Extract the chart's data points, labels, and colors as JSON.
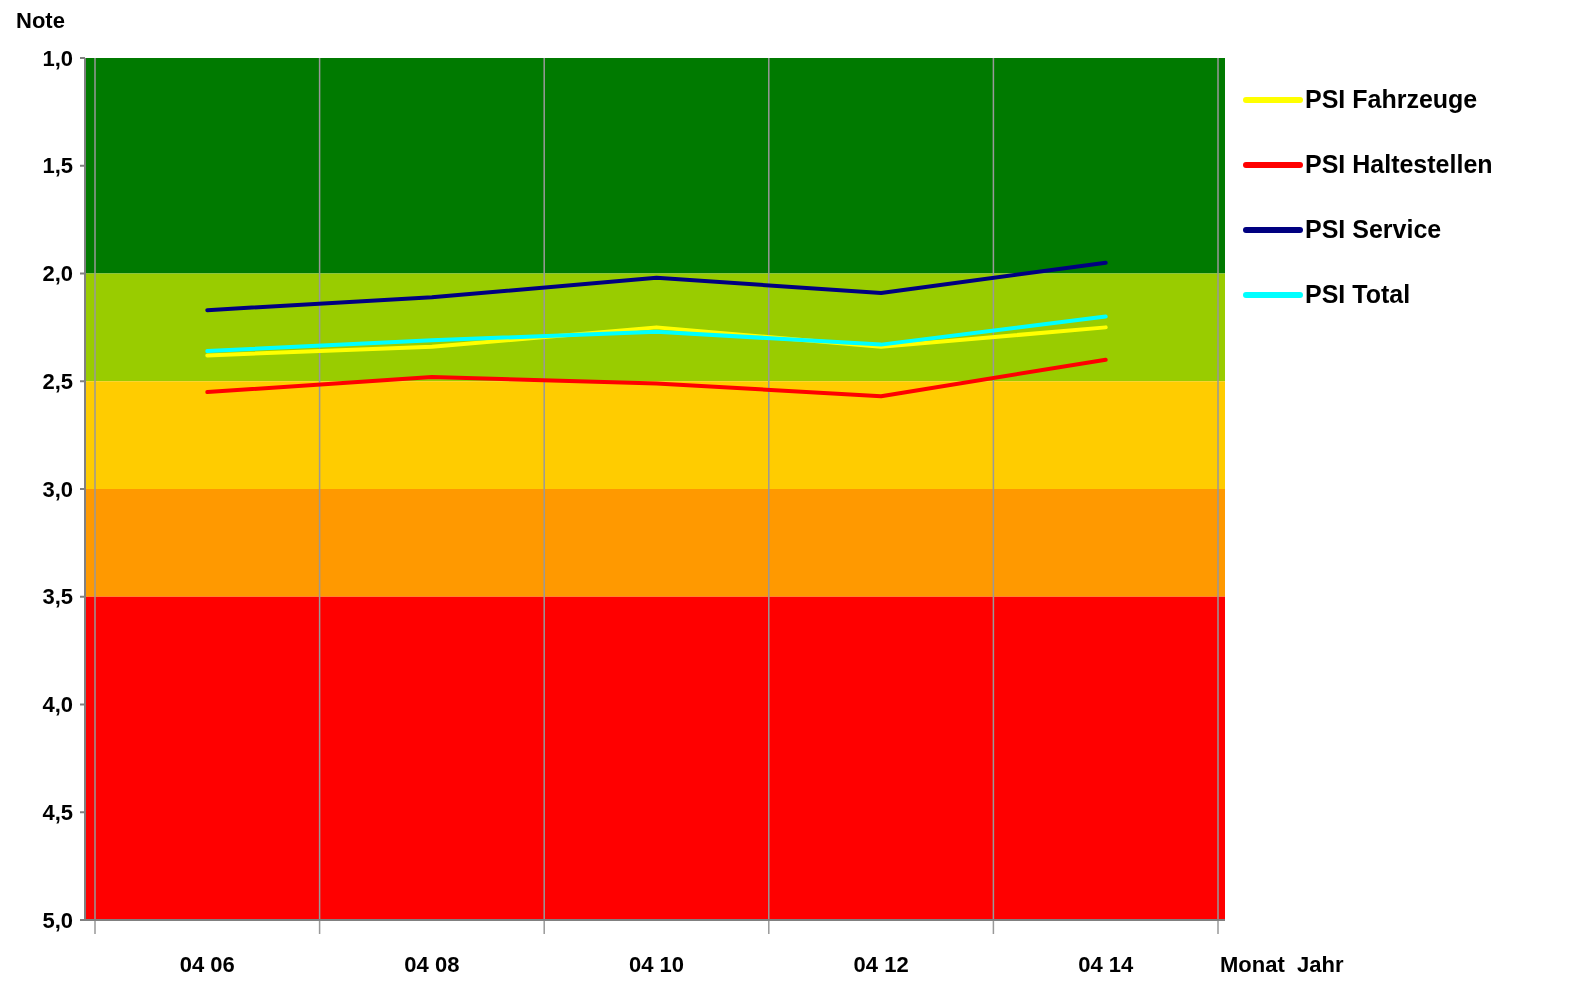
{
  "chart_data": {
    "type": "line",
    "ylabel": "Note",
    "xlabel": "Monat  Jahr",
    "categories": [
      "04 06",
      "04 08",
      "04 10",
      "04 12",
      "04 14"
    ],
    "ylim": [
      5.0,
      1.0
    ],
    "yticks": [
      {
        "value": 1,
        "label": "1,0"
      },
      {
        "value": 1.5,
        "label": "1,5"
      },
      {
        "value": 2,
        "label": "2,0"
      },
      {
        "value": 2.5,
        "label": "2,5"
      },
      {
        "value": 3,
        "label": "3,0"
      },
      {
        "value": 3.5,
        "label": "3,5"
      },
      {
        "value": 4,
        "label": "4,0"
      },
      {
        "value": 4.5,
        "label": "4,5"
      },
      {
        "value": 5,
        "label": "5,0"
      }
    ],
    "grid": "x",
    "legend": "top right",
    "marker": "none",
    "line_style": "solid",
    "bands": [
      {
        "axis": "y",
        "from": 1.0,
        "to": 2.0,
        "color": "#007a00"
      },
      {
        "axis": "y",
        "from": 2.0,
        "to": 2.5,
        "color": "#99cc00"
      },
      {
        "axis": "y",
        "from": 2.5,
        "to": 3.0,
        "color": "#ffcc00"
      },
      {
        "axis": "y",
        "from": 3.0,
        "to": 3.5,
        "color": "#ff9900"
      },
      {
        "axis": "y",
        "from": 3.5,
        "to": 5.0,
        "color": "#ff0000"
      }
    ],
    "series": [
      {
        "name": "PSI Fahrzeuge",
        "color": "#ffff00",
        "values": [
          2.38,
          2.34,
          2.25,
          2.34,
          2.25
        ]
      },
      {
        "name": "PSI Haltestellen",
        "color": "#ff0000",
        "values": [
          2.55,
          2.48,
          2.51,
          2.57,
          2.4
        ]
      },
      {
        "name": "PSI Service",
        "color": "#000080",
        "values": [
          2.17,
          2.11,
          2.02,
          2.09,
          1.95
        ]
      },
      {
        "name": "PSI Total",
        "color": "#00ffff",
        "values": [
          2.36,
          2.31,
          2.27,
          2.33,
          2.2
        ]
      }
    ]
  }
}
